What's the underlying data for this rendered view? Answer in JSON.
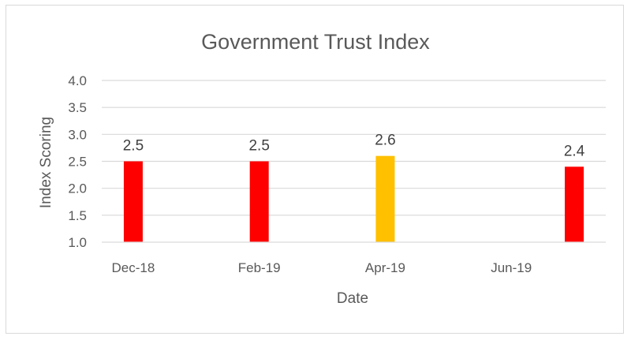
{
  "chart_data": {
    "type": "bar",
    "title": "Government Trust Index",
    "xlabel": "Date",
    "ylabel": "Index Scoring",
    "ylim": [
      1.0,
      4.0
    ],
    "yticks": [
      "1.0",
      "1.5",
      "2.0",
      "2.5",
      "3.0",
      "3.5",
      "4.0"
    ],
    "xticks": [
      "Dec-18",
      "Feb-19",
      "Apr-19",
      "Jun-19"
    ],
    "x_range": [
      "2018-12",
      "2019-08"
    ],
    "grid": true,
    "legend": "none",
    "points": [
      {
        "x": "2018-12",
        "value": 2.5,
        "label": "2.5",
        "color": "#ff0000"
      },
      {
        "x": "2019-02",
        "value": 2.5,
        "label": "2.5",
        "color": "#ff0000"
      },
      {
        "x": "2019-04",
        "value": 2.6,
        "label": "2.6",
        "color": "#ffc000"
      },
      {
        "x": "2019-07",
        "value": 2.4,
        "label": "2.4",
        "color": "#ff0000"
      }
    ]
  }
}
